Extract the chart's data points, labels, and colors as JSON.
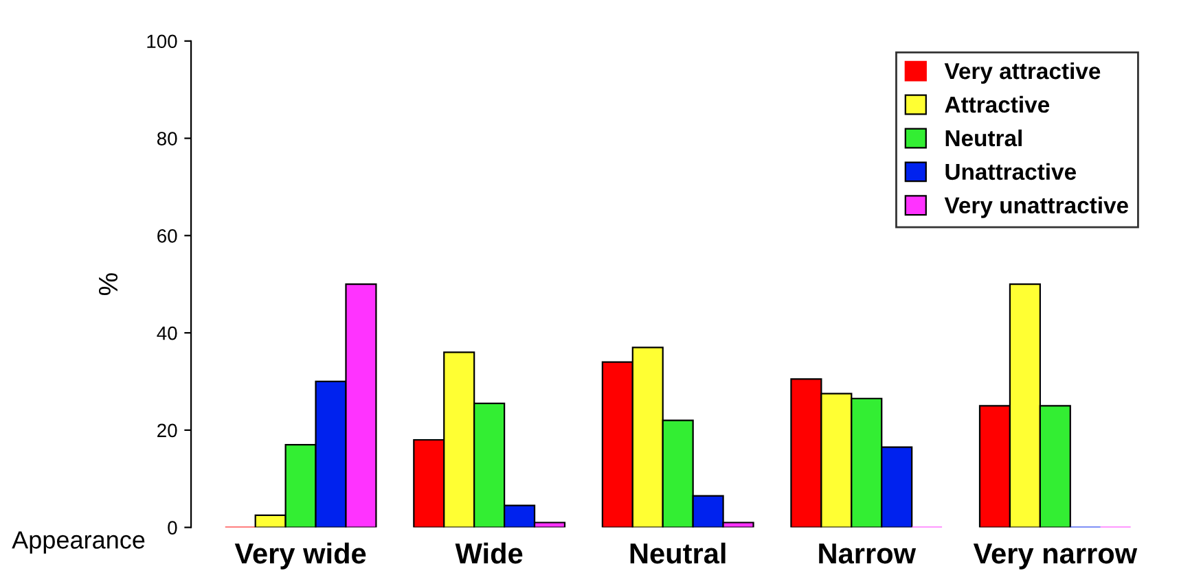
{
  "chart_data": {
    "type": "bar",
    "xlabel": "Appearance",
    "ylabel": "%",
    "categories": [
      "Very wide",
      "Wide",
      "Neutral",
      "Narrow",
      "Very narrow"
    ],
    "series": [
      {
        "name": "Very attractive",
        "color": "#ff0000",
        "values": [
          0,
          18,
          34,
          30.5,
          25
        ]
      },
      {
        "name": "Attractive",
        "color": "#ffff33",
        "values": [
          2.5,
          36,
          37,
          27.5,
          50
        ]
      },
      {
        "name": "Neutral",
        "color": "#33ee33",
        "values": [
          17,
          25.5,
          22,
          26.5,
          25
        ]
      },
      {
        "name": "Unattractive",
        "color": "#0022ee",
        "values": [
          30,
          4.5,
          6.5,
          16.5,
          0
        ]
      },
      {
        "name": "Very unattractive",
        "color": "#ff33ff",
        "values": [
          50,
          1,
          1,
          0,
          0
        ]
      }
    ],
    "ylim": [
      0,
      100
    ],
    "yticks": [
      0,
      20,
      40,
      60,
      80,
      100
    ],
    "grid": false,
    "legend": "top right"
  }
}
